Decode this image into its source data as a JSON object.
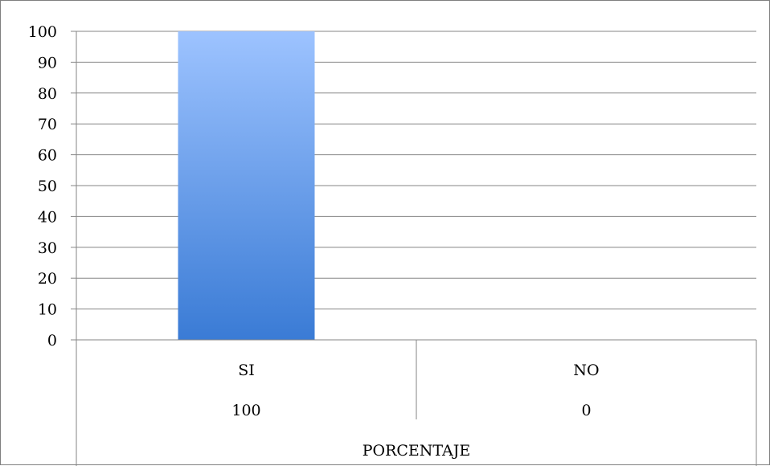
{
  "chart_data": {
    "type": "bar",
    "categories": [
      "SI",
      "NO"
    ],
    "values": [
      100,
      0
    ],
    "value_labels": [
      "100",
      "0"
    ],
    "xlabel": "PORCENTAJE",
    "ylabel": "",
    "title": "",
    "ylim": [
      0,
      100
    ],
    "yticks": [
      "0",
      "10",
      "20",
      "30",
      "40",
      "50",
      "60",
      "70",
      "80",
      "90",
      "100"
    ],
    "grid": true,
    "legend": "none",
    "colors": {
      "bar_top": "#9DC3FF",
      "bar_bottom": "#3A7BD5",
      "grid": "#868686",
      "axis": "#868686",
      "frame": "#7f7f7f"
    }
  }
}
